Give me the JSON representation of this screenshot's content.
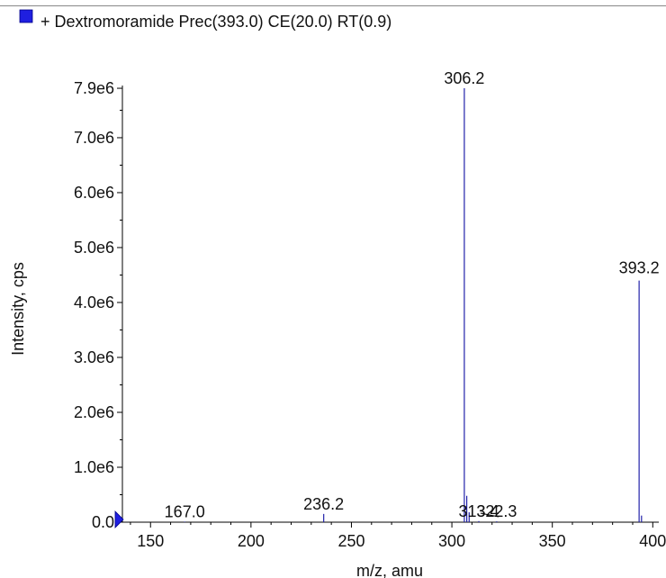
{
  "legend": {
    "label": "+ Dextromoramide Prec(393.0) CE(20.0) RT(0.9)",
    "swatch_color": "#1f1fe0"
  },
  "chart_data": {
    "type": "bar",
    "title": "+ Dextromoramide Prec(393.0) CE(20.0) RT(0.9)",
    "xlabel": "m/z, amu",
    "ylabel": "Intensity, cps",
    "xlim": [
      136,
      403
    ],
    "ylim": [
      0,
      7950000.0
    ],
    "x_ticks": [
      150,
      200,
      250,
      300,
      350,
      400
    ],
    "x_tick_labels": [
      "150",
      "200",
      "250",
      "300",
      "350",
      "400"
    ],
    "y_ticks": [
      0,
      1000000,
      2000000,
      3000000,
      4000000,
      5000000,
      6000000,
      7000000,
      7900000
    ],
    "y_tick_labels": [
      "0.0",
      "1.0e6",
      "2.0e6",
      "3.0e6",
      "4.0e6",
      "5.0e6",
      "6.0e6",
      "7.0e6",
      "7.9e6"
    ],
    "series_color": "#2222aa",
    "peaks": [
      {
        "x": 167.0,
        "y": 10000
      },
      {
        "x": 236.2,
        "y": 150000
      },
      {
        "x": 306.2,
        "y": 7900000
      },
      {
        "x": 307.4,
        "y": 480000
      },
      {
        "x": 308.6,
        "y": 180000
      },
      {
        "x": 313.4,
        "y": 20000
      },
      {
        "x": 322.3,
        "y": 15000
      },
      {
        "x": 393.2,
        "y": 4400000
      },
      {
        "x": 394.4,
        "y": 120000
      }
    ],
    "peak_labels": [
      {
        "x": 167.0,
        "y": 10000,
        "text": "167.0"
      },
      {
        "x": 236.2,
        "y": 150000,
        "text": "236.2"
      },
      {
        "x": 306.2,
        "y": 7900000,
        "text": "306.2"
      },
      {
        "x": 313.4,
        "y": 20000,
        "text": "313.4"
      },
      {
        "x": 322.3,
        "y": 15000,
        "text": "322.3"
      },
      {
        "x": 393.2,
        "y": 4400000,
        "text": "393.2"
      }
    ],
    "grid": false
  }
}
